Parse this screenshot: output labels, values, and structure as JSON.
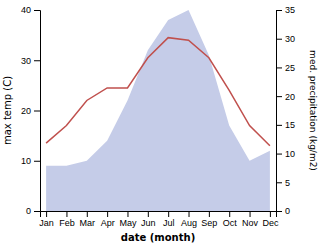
{
  "chart_data": {
    "type": "line",
    "categories": [
      "Jan",
      "Feb",
      "Mar",
      "Apr",
      "May",
      "Jun",
      "Jul",
      "Aug",
      "Sep",
      "Oct",
      "Nov",
      "Dec"
    ],
    "series": [
      {
        "type": "area",
        "color": "#c5cce8",
        "values": [
          9,
          9,
          10,
          14,
          22,
          32,
          38,
          40,
          31,
          17,
          10,
          12
        ]
      },
      {
        "type": "line",
        "color": "#c0504d",
        "values": [
          13.5,
          17.0,
          22.0,
          24.5,
          24.5,
          30.5,
          34.5,
          34.0,
          30.5,
          24.0,
          17.0,
          13.0
        ]
      }
    ],
    "xlabel": "date (month)",
    "ylabel": "max temp (C)",
    "y2label": "med. precipitation (kg/m2)",
    "ylim": [
      0,
      40
    ],
    "yticks": [
      0,
      10,
      20,
      30,
      40
    ],
    "y2lim": [
      0,
      35
    ],
    "y2ticks": [
      0,
      5,
      10,
      15,
      20,
      25,
      30,
      35
    ],
    "grid": false
  }
}
